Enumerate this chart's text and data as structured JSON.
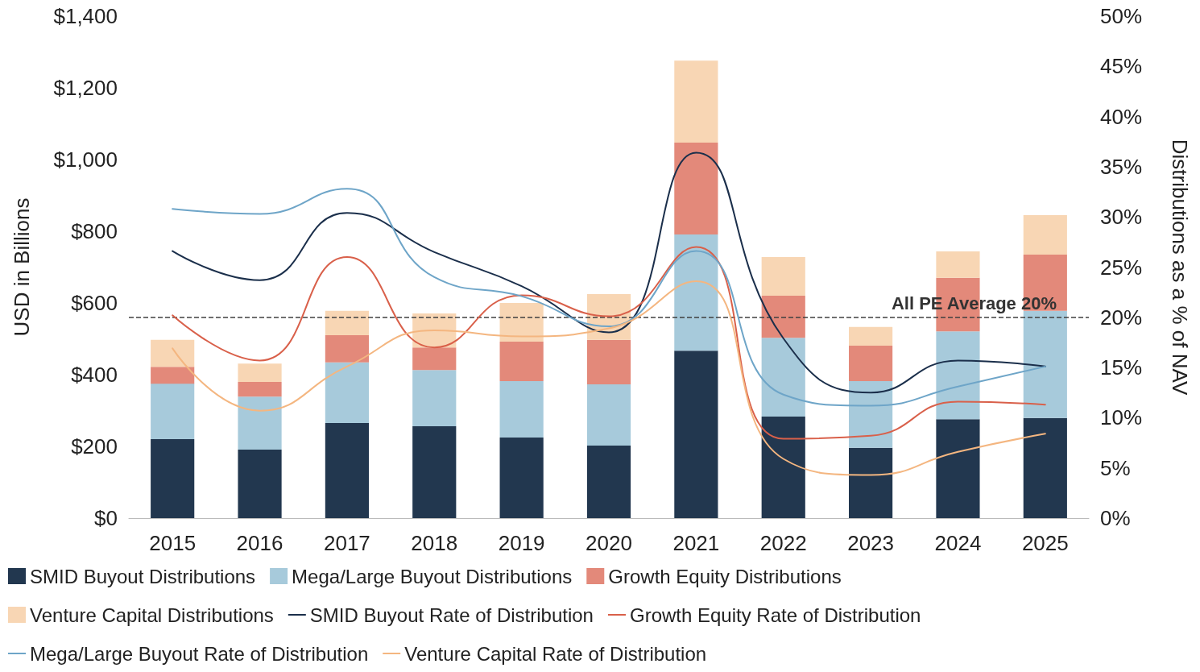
{
  "chart_data": {
    "type": "bar",
    "stacked": true,
    "ylabel": "USD in Billions",
    "y2label": "Distributions as a % of NAV",
    "categories": [
      "2015",
      "2016",
      "2017",
      "2018",
      "2019",
      "2020",
      "2021",
      "2022",
      "2023",
      "2024",
      "2025"
    ],
    "series": [
      {
        "name": "SMID Buyout Distributions",
        "color": "#22374f",
        "values": [
          220,
          191,
          265,
          256,
          225,
          202,
          467,
          283,
          196,
          276,
          279
        ]
      },
      {
        "name": "Mega/Large Buyout Distributions",
        "color": "#a7cadb",
        "values": [
          155,
          148,
          169,
          157,
          157,
          171,
          324,
          220,
          186,
          245,
          299
        ]
      },
      {
        "name": "Growth Equity Distributions",
        "color": "#e3897a",
        "values": [
          47,
          41,
          76,
          63,
          110,
          124,
          256,
          117,
          99,
          149,
          157
        ]
      },
      {
        "name": "Venture Capital Distributions",
        "color": "#f8d6b4",
        "values": [
          75,
          51,
          68,
          95,
          108,
          128,
          229,
          108,
          52,
          74,
          110
        ]
      },
      {
        "name": "SMID Buyout Rate of Distribution",
        "type": "line",
        "axis": "y2",
        "color": "#1b2f4b",
        "values": [
          26.6,
          23.7,
          30.4,
          26.5,
          23.1,
          18.5,
          36.4,
          17.9,
          12.5,
          15.7,
          15.1
        ]
      },
      {
        "name": "Growth Equity Rate of Distribution",
        "type": "line",
        "axis": "y2",
        "color": "#d9604a",
        "values": [
          20.2,
          15.7,
          26.0,
          17.0,
          22.2,
          20.1,
          27.0,
          7.9,
          8.2,
          11.6,
          11.3
        ]
      },
      {
        "name": "Mega/Large Buyout Rate of Distribution",
        "type": "line",
        "axis": "y2",
        "color": "#6ea5c8",
        "values": [
          30.8,
          30.3,
          32.8,
          24.0,
          22.1,
          19.1,
          26.6,
          12.3,
          11.2,
          13.1,
          15.1
        ]
      },
      {
        "name": "Venture Capital Rate of Distribution",
        "type": "line",
        "axis": "y2",
        "color": "#f4b680",
        "values": [
          16.9,
          10.7,
          15.1,
          18.7,
          18.1,
          18.9,
          23.6,
          5.9,
          4.3,
          6.6,
          8.4
        ]
      }
    ],
    "ylim": [
      0,
      1400
    ],
    "yticks": [
      {
        "value": 0,
        "label": "$0"
      },
      {
        "value": 200,
        "label": "$200"
      },
      {
        "value": 400,
        "label": "$400"
      },
      {
        "value": 600,
        "label": "$600"
      },
      {
        "value": 800,
        "label": "$800"
      },
      {
        "value": 1000,
        "label": "$1,000"
      },
      {
        "value": 1200,
        "label": "$1,200"
      },
      {
        "value": 1400,
        "label": "$1,400"
      }
    ],
    "y2lim": [
      0,
      50
    ],
    "y2ticks": [
      {
        "value": 0,
        "label": "0%"
      },
      {
        "value": 5,
        "label": "5%"
      },
      {
        "value": 10,
        "label": "10%"
      },
      {
        "value": 15,
        "label": "15%"
      },
      {
        "value": 20,
        "label": "20%"
      },
      {
        "value": 25,
        "label": "25%"
      },
      {
        "value": 30,
        "label": "30%"
      },
      {
        "value": 35,
        "label": "35%"
      },
      {
        "value": 40,
        "label": "40%"
      },
      {
        "value": 45,
        "label": "45%"
      },
      {
        "value": 50,
        "label": "50%"
      }
    ],
    "ref_lines": [
      {
        "axis": "y2",
        "value": 20,
        "label": "All PE Average 20%",
        "color": "#404040",
        "line_style": "dashed"
      }
    ],
    "grid": false,
    "legend": "bottom",
    "marker": "none",
    "line_style": "solid"
  }
}
